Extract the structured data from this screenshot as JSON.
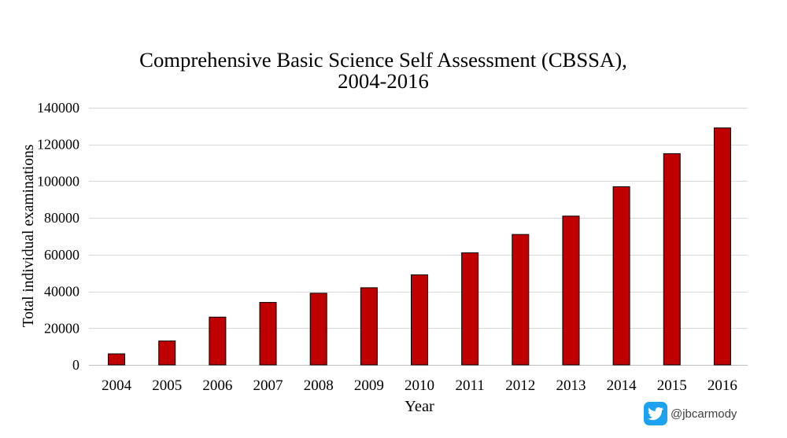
{
  "chart_data": {
    "type": "bar",
    "title": "Comprehensive Basic Science Self Assessment (CBSSA),\n2004-2016",
    "xlabel": "Year",
    "ylabel": "Total individual examinations",
    "categories": [
      "2004",
      "2005",
      "2006",
      "2007",
      "2008",
      "2009",
      "2010",
      "2011",
      "2012",
      "2013",
      "2014",
      "2015",
      "2016"
    ],
    "values": [
      6000,
      13000,
      26000,
      34000,
      39000,
      42000,
      49000,
      61000,
      71000,
      81000,
      97000,
      115000,
      129000
    ],
    "ylim": [
      0,
      140000
    ],
    "yticks": [
      0,
      20000,
      40000,
      60000,
      80000,
      100000,
      120000,
      140000
    ],
    "grid": true,
    "bar_color": "#C00000",
    "bar_outline_color": "#000000",
    "grid_color": "#D9D9D9",
    "axis_color": "#BFBFBF"
  },
  "watermark": {
    "icon": "twitter-bird-icon",
    "icon_color": "#1DA1F2",
    "handle": "@jbcarmody"
  }
}
